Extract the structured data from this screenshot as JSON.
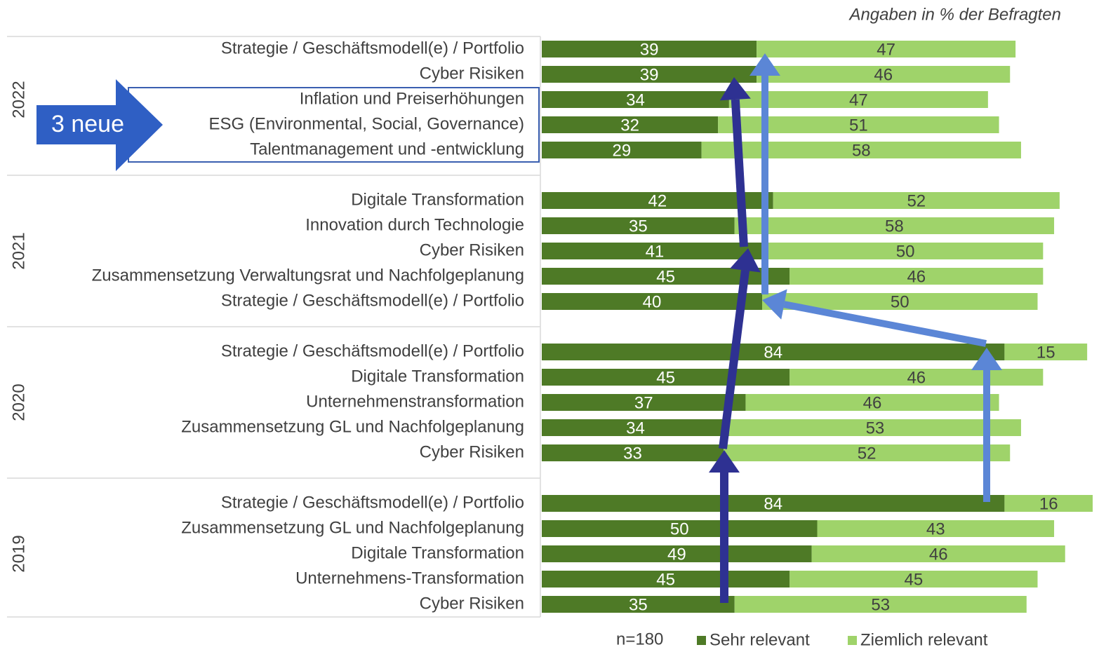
{
  "chart_data": {
    "type": "stacked-bar-horizontal",
    "subtitle": "Angaben in % der Befragten",
    "note": "n=180",
    "callout": "3 neue",
    "xlim": [
      0,
      100
    ],
    "groups": [
      {
        "label": "2022",
        "categories": [
          "Strategie / Geschäftsmodell(e) / Portfolio",
          "Cyber Risiken",
          "Inflation und Preiserhöhungen",
          "ESG (Environmental, Social, Governance)",
          "Talentmanagement und -entwicklung"
        ]
      },
      {
        "label": "2021",
        "categories": [
          "Digitale Transformation",
          "Innovation durch Technologie",
          "Cyber Risiken",
          "Zusammensetzung Verwaltungsrat und Nachfolgeplanung",
          "Strategie / Geschäftsmodell(e) / Portfolio"
        ]
      },
      {
        "label": "2020",
        "categories": [
          "Strategie / Geschäftsmodell(e) / Portfolio",
          "Digitale Transformation",
          "Unternehmenstransformation",
          "Zusammensetzung GL und Nachfolgeplanung",
          "Cyber Risiken"
        ]
      },
      {
        "label": "2019",
        "categories": [
          "Strategie / Geschäftsmodell(e) / Portfolio",
          "Zusammensetzung GL und Nachfolgeplanung",
          "Digitale Transformation",
          "Unternehmens-Transformation",
          "Cyber Risiken"
        ]
      }
    ],
    "series": [
      {
        "name": "Sehr relevant",
        "color": "#4e7a26",
        "label_color": "#ffffff",
        "values": [
          39,
          39,
          34,
          32,
          29,
          42,
          35,
          41,
          45,
          40,
          84,
          45,
          37,
          34,
          33,
          84,
          50,
          49,
          45,
          35
        ]
      },
      {
        "name": "Ziemlich relevant",
        "color": "#9fd36a",
        "label_color": "#404040",
        "values": [
          47,
          46,
          47,
          51,
          58,
          52,
          58,
          50,
          46,
          50,
          15,
          46,
          46,
          53,
          52,
          16,
          43,
          46,
          45,
          53
        ]
      }
    ]
  }
}
